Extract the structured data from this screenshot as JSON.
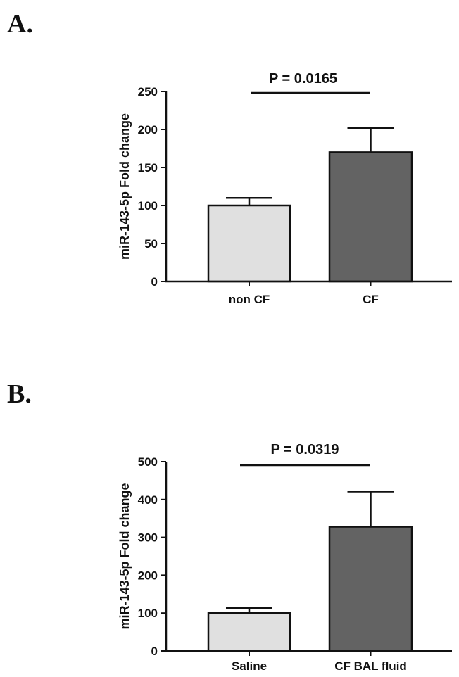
{
  "panels": [
    {
      "label": "A."
    },
    {
      "label": "B."
    }
  ],
  "chart_data": [
    {
      "type": "bar",
      "panel": "A.",
      "categories": [
        "non CF",
        "CF"
      ],
      "values": [
        100,
        170
      ],
      "error_upper": [
        110,
        202
      ],
      "ylabel": "miR-143-5p Fold change",
      "xlabel": "",
      "ylim": [
        0,
        250
      ],
      "yticks": [
        0,
        50,
        100,
        150,
        200,
        250
      ],
      "bar_colors": [
        "#e0e0e0",
        "#636363"
      ],
      "annotation": "P = 0.0165"
    },
    {
      "type": "bar",
      "panel": "B.",
      "categories": [
        "Saline",
        "CF BAL fluid"
      ],
      "values": [
        100,
        328
      ],
      "error_upper": [
        113,
        421
      ],
      "ylabel": "miR-143-5p Fold change",
      "xlabel": "",
      "ylim": [
        0,
        500
      ],
      "yticks": [
        0,
        100,
        200,
        300,
        400,
        500
      ],
      "bar_colors": [
        "#e0e0e0",
        "#636363"
      ],
      "annotation": "P = 0.0319"
    }
  ]
}
